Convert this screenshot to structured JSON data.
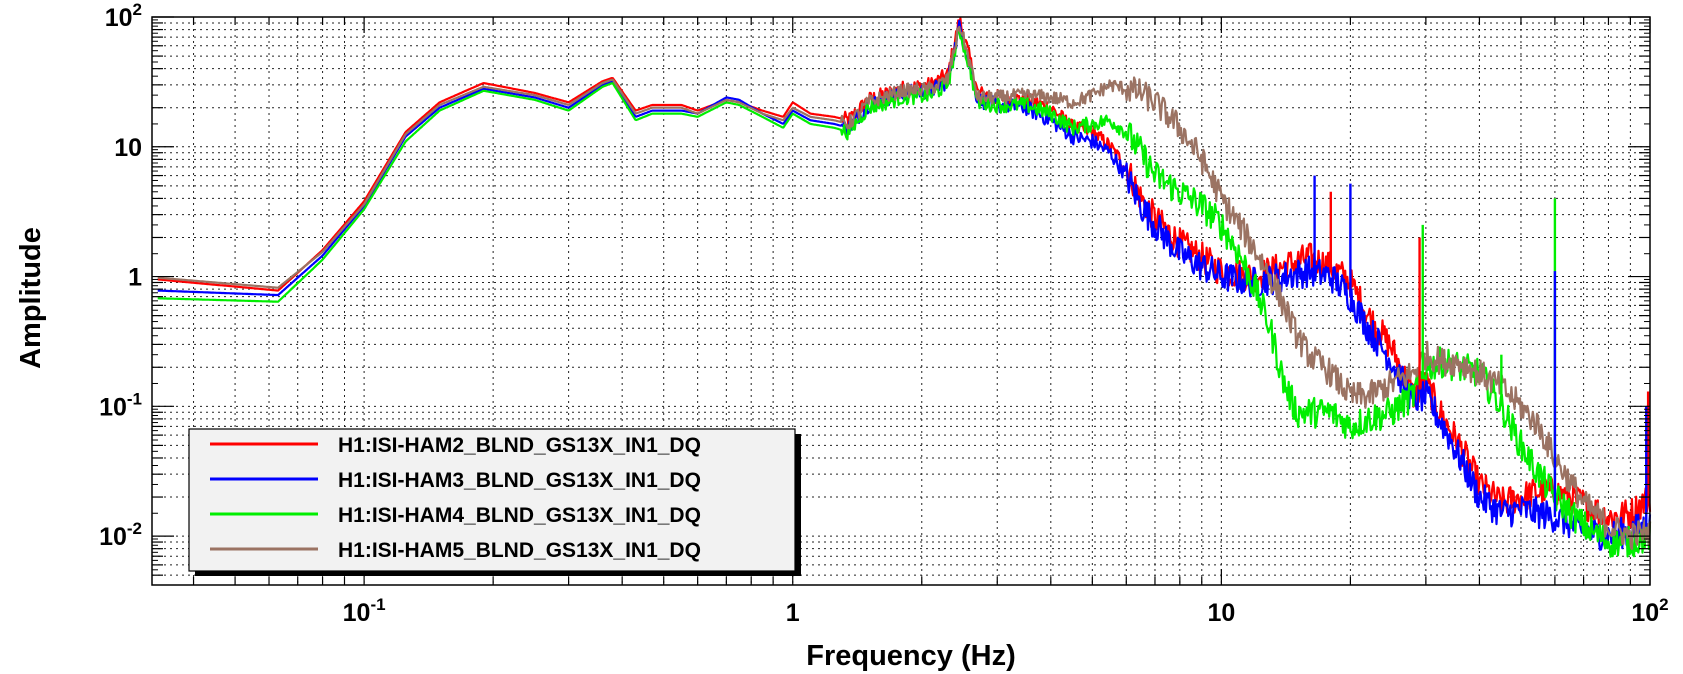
{
  "chart_data": {
    "type": "line",
    "title": "",
    "xlabel": "Frequency (Hz)",
    "ylabel": "Amplitude",
    "xscale": "log",
    "yscale": "log",
    "xlim": [
      0.032,
      100
    ],
    "ylim": [
      0.0042,
      100
    ],
    "grid": true,
    "x_tick_labels": [
      {
        "value": 0.1,
        "base": "10",
        "exp": "-1"
      },
      {
        "value": 1,
        "base": "1",
        "exp": ""
      },
      {
        "value": 10,
        "base": "10",
        "exp": ""
      },
      {
        "value": 100,
        "base": "10",
        "exp": "2"
      }
    ],
    "y_tick_labels": [
      {
        "value": 0.01,
        "base": "10",
        "exp": "-2"
      },
      {
        "value": 0.1,
        "base": "10",
        "exp": "-1"
      },
      {
        "value": 1,
        "base": "1",
        "exp": ""
      },
      {
        "value": 10,
        "base": "10",
        "exp": ""
      },
      {
        "value": 100,
        "base": "10",
        "exp": "2"
      }
    ],
    "legend_position": "bottom-left",
    "series": [
      {
        "name": "H1:ISI-HAM2_BLND_GS13X_IN1_DQ",
        "color": "#ff0000",
        "noise": 0.1,
        "points": [
          [
            0.033,
            0.95
          ],
          [
            0.063,
            0.78
          ],
          [
            0.08,
            1.6
          ],
          [
            0.1,
            3.8
          ],
          [
            0.125,
            13
          ],
          [
            0.15,
            22
          ],
          [
            0.19,
            31
          ],
          [
            0.25,
            26
          ],
          [
            0.3,
            22
          ],
          [
            0.36,
            32
          ],
          [
            0.38,
            34
          ],
          [
            0.43,
            19
          ],
          [
            0.47,
            21
          ],
          [
            0.55,
            21
          ],
          [
            0.6,
            19
          ],
          [
            0.7,
            23
          ],
          [
            0.75,
            22
          ],
          [
            0.85,
            19
          ],
          [
            0.95,
            17
          ],
          [
            1.0,
            22
          ],
          [
            1.1,
            18
          ],
          [
            1.25,
            17
          ],
          [
            1.35,
            16
          ],
          [
            1.5,
            23
          ],
          [
            1.8,
            28
          ],
          [
            2.1,
            30
          ],
          [
            2.3,
            36
          ],
          [
            2.45,
            95
          ],
          [
            2.6,
            45
          ],
          [
            2.7,
            26
          ],
          [
            3.0,
            24
          ],
          [
            3.5,
            23
          ],
          [
            4.0,
            20
          ],
          [
            4.5,
            14
          ],
          [
            5.0,
            13
          ],
          [
            5.5,
            10
          ],
          [
            6.0,
            7
          ],
          [
            6.5,
            4.0
          ],
          [
            7.0,
            2.8
          ],
          [
            8.0,
            1.8
          ],
          [
            9.0,
            1.4
          ],
          [
            10,
            1.1
          ],
          [
            12,
            1.0
          ],
          [
            14,
            1.2
          ],
          [
            16,
            1.4
          ],
          [
            18,
            1.2
          ],
          [
            20,
            0.9
          ],
          [
            22,
            0.5
          ],
          [
            25,
            0.28
          ],
          [
            28,
            0.12
          ],
          [
            30,
            0.15
          ],
          [
            33,
            0.08
          ],
          [
            36,
            0.05
          ],
          [
            40,
            0.025
          ],
          [
            45,
            0.018
          ],
          [
            50,
            0.02
          ],
          [
            55,
            0.022
          ],
          [
            60,
            0.022
          ],
          [
            70,
            0.018
          ],
          [
            80,
            0.014
          ],
          [
            90,
            0.015
          ],
          [
            100,
            0.02
          ]
        ]
      },
      {
        "name": "H1:ISI-HAM3_BLND_GS13X_IN1_DQ",
        "color": "#0000ff",
        "noise": 0.1,
        "points": [
          [
            0.033,
            0.78
          ],
          [
            0.063,
            0.72
          ],
          [
            0.08,
            1.45
          ],
          [
            0.1,
            3.5
          ],
          [
            0.125,
            12
          ],
          [
            0.15,
            20
          ],
          [
            0.19,
            28
          ],
          [
            0.25,
            24
          ],
          [
            0.3,
            20
          ],
          [
            0.36,
            30
          ],
          [
            0.38,
            32
          ],
          [
            0.43,
            17
          ],
          [
            0.47,
            19
          ],
          [
            0.55,
            19
          ],
          [
            0.6,
            18
          ],
          [
            0.7,
            24
          ],
          [
            0.75,
            23
          ],
          [
            0.85,
            18
          ],
          [
            0.95,
            15
          ],
          [
            1.0,
            19
          ],
          [
            1.1,
            16
          ],
          [
            1.25,
            15
          ],
          [
            1.35,
            14
          ],
          [
            1.5,
            21
          ],
          [
            1.8,
            26
          ],
          [
            2.1,
            27
          ],
          [
            2.3,
            32
          ],
          [
            2.45,
            85
          ],
          [
            2.6,
            40
          ],
          [
            2.7,
            23
          ],
          [
            3.0,
            21
          ],
          [
            3.5,
            20
          ],
          [
            4.0,
            16
          ],
          [
            4.5,
            12
          ],
          [
            5.0,
            11
          ],
          [
            5.5,
            9
          ],
          [
            6.0,
            6
          ],
          [
            6.5,
            3.5
          ],
          [
            7.0,
            2.5
          ],
          [
            8.0,
            1.5
          ],
          [
            9.0,
            1.2
          ],
          [
            10,
            1.0
          ],
          [
            12,
            0.9
          ],
          [
            14,
            1.0
          ],
          [
            16,
            1.1
          ],
          [
            18,
            1.0
          ],
          [
            20,
            0.7
          ],
          [
            22,
            0.4
          ],
          [
            25,
            0.22
          ],
          [
            28,
            0.11
          ],
          [
            30,
            0.12
          ],
          [
            33,
            0.07
          ],
          [
            36,
            0.04
          ],
          [
            40,
            0.02
          ],
          [
            45,
            0.015
          ],
          [
            50,
            0.016
          ],
          [
            55,
            0.015
          ],
          [
            60,
            0.014
          ],
          [
            70,
            0.011
          ],
          [
            80,
            0.01
          ],
          [
            90,
            0.011
          ],
          [
            100,
            0.012
          ]
        ]
      },
      {
        "name": "H1:ISI-HAM4_BLND_GS13X_IN1_DQ",
        "color": "#00ee00",
        "noise": 0.1,
        "points": [
          [
            0.033,
            0.68
          ],
          [
            0.063,
            0.64
          ],
          [
            0.08,
            1.35
          ],
          [
            0.1,
            3.3
          ],
          [
            0.125,
            11
          ],
          [
            0.15,
            19
          ],
          [
            0.19,
            27
          ],
          [
            0.25,
            23
          ],
          [
            0.3,
            19
          ],
          [
            0.36,
            29
          ],
          [
            0.38,
            31
          ],
          [
            0.43,
            16
          ],
          [
            0.47,
            18
          ],
          [
            0.55,
            18
          ],
          [
            0.6,
            17
          ],
          [
            0.7,
            22
          ],
          [
            0.75,
            21
          ],
          [
            0.85,
            17
          ],
          [
            0.95,
            14
          ],
          [
            1.0,
            18
          ],
          [
            1.1,
            15
          ],
          [
            1.25,
            14
          ],
          [
            1.35,
            13
          ],
          [
            1.5,
            20
          ],
          [
            1.8,
            24
          ],
          [
            2.1,
            25
          ],
          [
            2.3,
            30
          ],
          [
            2.45,
            80
          ],
          [
            2.6,
            38
          ],
          [
            2.7,
            22
          ],
          [
            3.0,
            21
          ],
          [
            3.5,
            21
          ],
          [
            4.0,
            18
          ],
          [
            4.5,
            14
          ],
          [
            5.0,
            15
          ],
          [
            5.5,
            16
          ],
          [
            6.0,
            13
          ],
          [
            6.5,
            9
          ],
          [
            7.0,
            6
          ],
          [
            8.0,
            4.5
          ],
          [
            9.0,
            3.5
          ],
          [
            10,
            2.5
          ],
          [
            11,
            1.5
          ],
          [
            12,
            0.8
          ],
          [
            13,
            0.4
          ],
          [
            14,
            0.15
          ],
          [
            15,
            0.09
          ],
          [
            18,
            0.09
          ],
          [
            20,
            0.07
          ],
          [
            22,
            0.08
          ],
          [
            25,
            0.09
          ],
          [
            28,
            0.12
          ],
          [
            30,
            0.2
          ],
          [
            33,
            0.22
          ],
          [
            36,
            0.2
          ],
          [
            40,
            0.18
          ],
          [
            45,
            0.1
          ],
          [
            50,
            0.05
          ],
          [
            55,
            0.03
          ],
          [
            60,
            0.02
          ],
          [
            70,
            0.012
          ],
          [
            80,
            0.009
          ],
          [
            90,
            0.009
          ],
          [
            100,
            0.01
          ]
        ]
      },
      {
        "name": "H1:ISI-HAM5_BLND_GS13X_IN1_DQ",
        "color": "#9b7363",
        "noise": 0.09,
        "points": [
          [
            0.033,
            0.98
          ],
          [
            0.063,
            0.82
          ],
          [
            0.08,
            1.55
          ],
          [
            0.1,
            3.6
          ],
          [
            0.125,
            12.5
          ],
          [
            0.15,
            21
          ],
          [
            0.19,
            29
          ],
          [
            0.25,
            25
          ],
          [
            0.3,
            21
          ],
          [
            0.36,
            31
          ],
          [
            0.38,
            33
          ],
          [
            0.43,
            18
          ],
          [
            0.47,
            20
          ],
          [
            0.55,
            20
          ],
          [
            0.6,
            18
          ],
          [
            0.7,
            23
          ],
          [
            0.75,
            22
          ],
          [
            0.85,
            18
          ],
          [
            0.95,
            16
          ],
          [
            1.0,
            20
          ],
          [
            1.1,
            17
          ],
          [
            1.25,
            16
          ],
          [
            1.35,
            15
          ],
          [
            1.5,
            22
          ],
          [
            1.8,
            27
          ],
          [
            2.1,
            28
          ],
          [
            2.3,
            33
          ],
          [
            2.45,
            88
          ],
          [
            2.6,
            42
          ],
          [
            2.7,
            24
          ],
          [
            3.0,
            24
          ],
          [
            3.5,
            25
          ],
          [
            4.0,
            24
          ],
          [
            4.5,
            22
          ],
          [
            5.0,
            25
          ],
          [
            5.5,
            30
          ],
          [
            6.0,
            28
          ],
          [
            6.5,
            26
          ],
          [
            7.0,
            22
          ],
          [
            8.0,
            14
          ],
          [
            9.0,
            8
          ],
          [
            10,
            4
          ],
          [
            11,
            2.5
          ],
          [
            12,
            1.6
          ],
          [
            13,
            1.0
          ],
          [
            14,
            0.6
          ],
          [
            15,
            0.35
          ],
          [
            16,
            0.25
          ],
          [
            18,
            0.18
          ],
          [
            20,
            0.12
          ],
          [
            22,
            0.12
          ],
          [
            25,
            0.15
          ],
          [
            28,
            0.18
          ],
          [
            30,
            0.25
          ],
          [
            33,
            0.22
          ],
          [
            36,
            0.22
          ],
          [
            40,
            0.18
          ],
          [
            45,
            0.14
          ],
          [
            50,
            0.1
          ],
          [
            55,
            0.07
          ],
          [
            60,
            0.04
          ],
          [
            70,
            0.018
          ],
          [
            80,
            0.012
          ],
          [
            90,
            0.01
          ],
          [
            100,
            0.011
          ]
        ]
      }
    ],
    "spikes": [
      {
        "series": 2,
        "x": 60,
        "y": 4.0
      },
      {
        "series": 1,
        "x": 60,
        "y": 1.1
      },
      {
        "series": 1,
        "x": 16.5,
        "y": 6.0
      },
      {
        "series": 1,
        "x": 20,
        "y": 5.2
      },
      {
        "series": 0,
        "x": 18,
        "y": 4.5
      },
      {
        "series": 2,
        "x": 29.5,
        "y": 2.5
      },
      {
        "series": 0,
        "x": 29,
        "y": 2.0
      },
      {
        "series": 2,
        "x": 45,
        "y": 0.25
      },
      {
        "series": 0,
        "x": 99,
        "y": 0.13
      },
      {
        "series": 1,
        "x": 98,
        "y": 0.1
      }
    ]
  }
}
